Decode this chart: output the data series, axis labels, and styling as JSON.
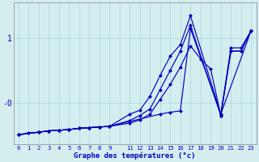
{
  "xlabel": "Graphe des températures (°c)",
  "background_color": "#d4eef0",
  "grid_color": "#a8d8dc",
  "line_color": "#0000bb",
  "xlim": [
    -0.5,
    23.5
  ],
  "ylim": [
    -0.65,
    1.55
  ],
  "xtick_labels": [
    "0",
    "1",
    "2",
    "3",
    "4",
    "5",
    "6",
    "7",
    "8",
    "9",
    "",
    "11",
    "12",
    "13",
    "14",
    "15",
    "16",
    "17",
    "18",
    "19",
    "20",
    "21",
    "22",
    "23"
  ],
  "ytick_positions": [
    0,
    1
  ],
  "ytick_labels": [
    "-0",
    "1"
  ],
  "line1_x": [
    0,
    1,
    2,
    3,
    4,
    5,
    6,
    7,
    8,
    9,
    14,
    15,
    16,
    17,
    20,
    23
  ],
  "line1_y": [
    -0.5,
    -0.47,
    -0.46,
    -0.44,
    -0.43,
    -0.42,
    -0.4,
    -0.39,
    -0.38,
    -0.37,
    -0.18,
    -0.15,
    -0.13,
    1.15,
    -0.18,
    1.12
  ],
  "line2_x": [
    0,
    2,
    3,
    4,
    5,
    6,
    7,
    8,
    9,
    11,
    12,
    13,
    14,
    15,
    16,
    17,
    20,
    21,
    22,
    23
  ],
  "line2_y": [
    -0.5,
    -0.46,
    -0.44,
    -0.43,
    -0.42,
    -0.4,
    -0.39,
    -0.38,
    -0.37,
    -0.28,
    -0.2,
    -0.1,
    0.2,
    0.5,
    0.8,
    1.2,
    -0.2,
    0.8,
    0.8,
    1.12
  ],
  "line3_x": [
    0,
    2,
    3,
    4,
    5,
    6,
    7,
    8,
    9,
    11,
    12,
    13,
    14,
    15,
    16,
    17,
    20,
    21,
    22,
    23
  ],
  "line3_y": [
    -0.5,
    -0.46,
    -0.44,
    -0.43,
    -0.42,
    -0.4,
    -0.39,
    -0.38,
    -0.37,
    -0.18,
    -0.12,
    0.1,
    0.42,
    0.72,
    0.9,
    1.35,
    -0.18,
    0.85,
    0.85,
    1.12
  ],
  "line4_x": [
    0,
    2,
    3,
    4,
    5,
    6,
    7,
    8,
    9,
    11,
    12,
    13,
    14,
    15,
    16,
    17,
    18,
    19,
    20,
    21,
    22,
    23
  ],
  "line4_y": [
    -0.5,
    -0.46,
    -0.44,
    -0.43,
    -0.42,
    -0.4,
    -0.39,
    -0.38,
    -0.37,
    -0.32,
    -0.27,
    -0.18,
    0.05,
    0.28,
    0.55,
    0.88,
    0.68,
    0.52,
    -0.2,
    0.8,
    0.8,
    1.12
  ]
}
